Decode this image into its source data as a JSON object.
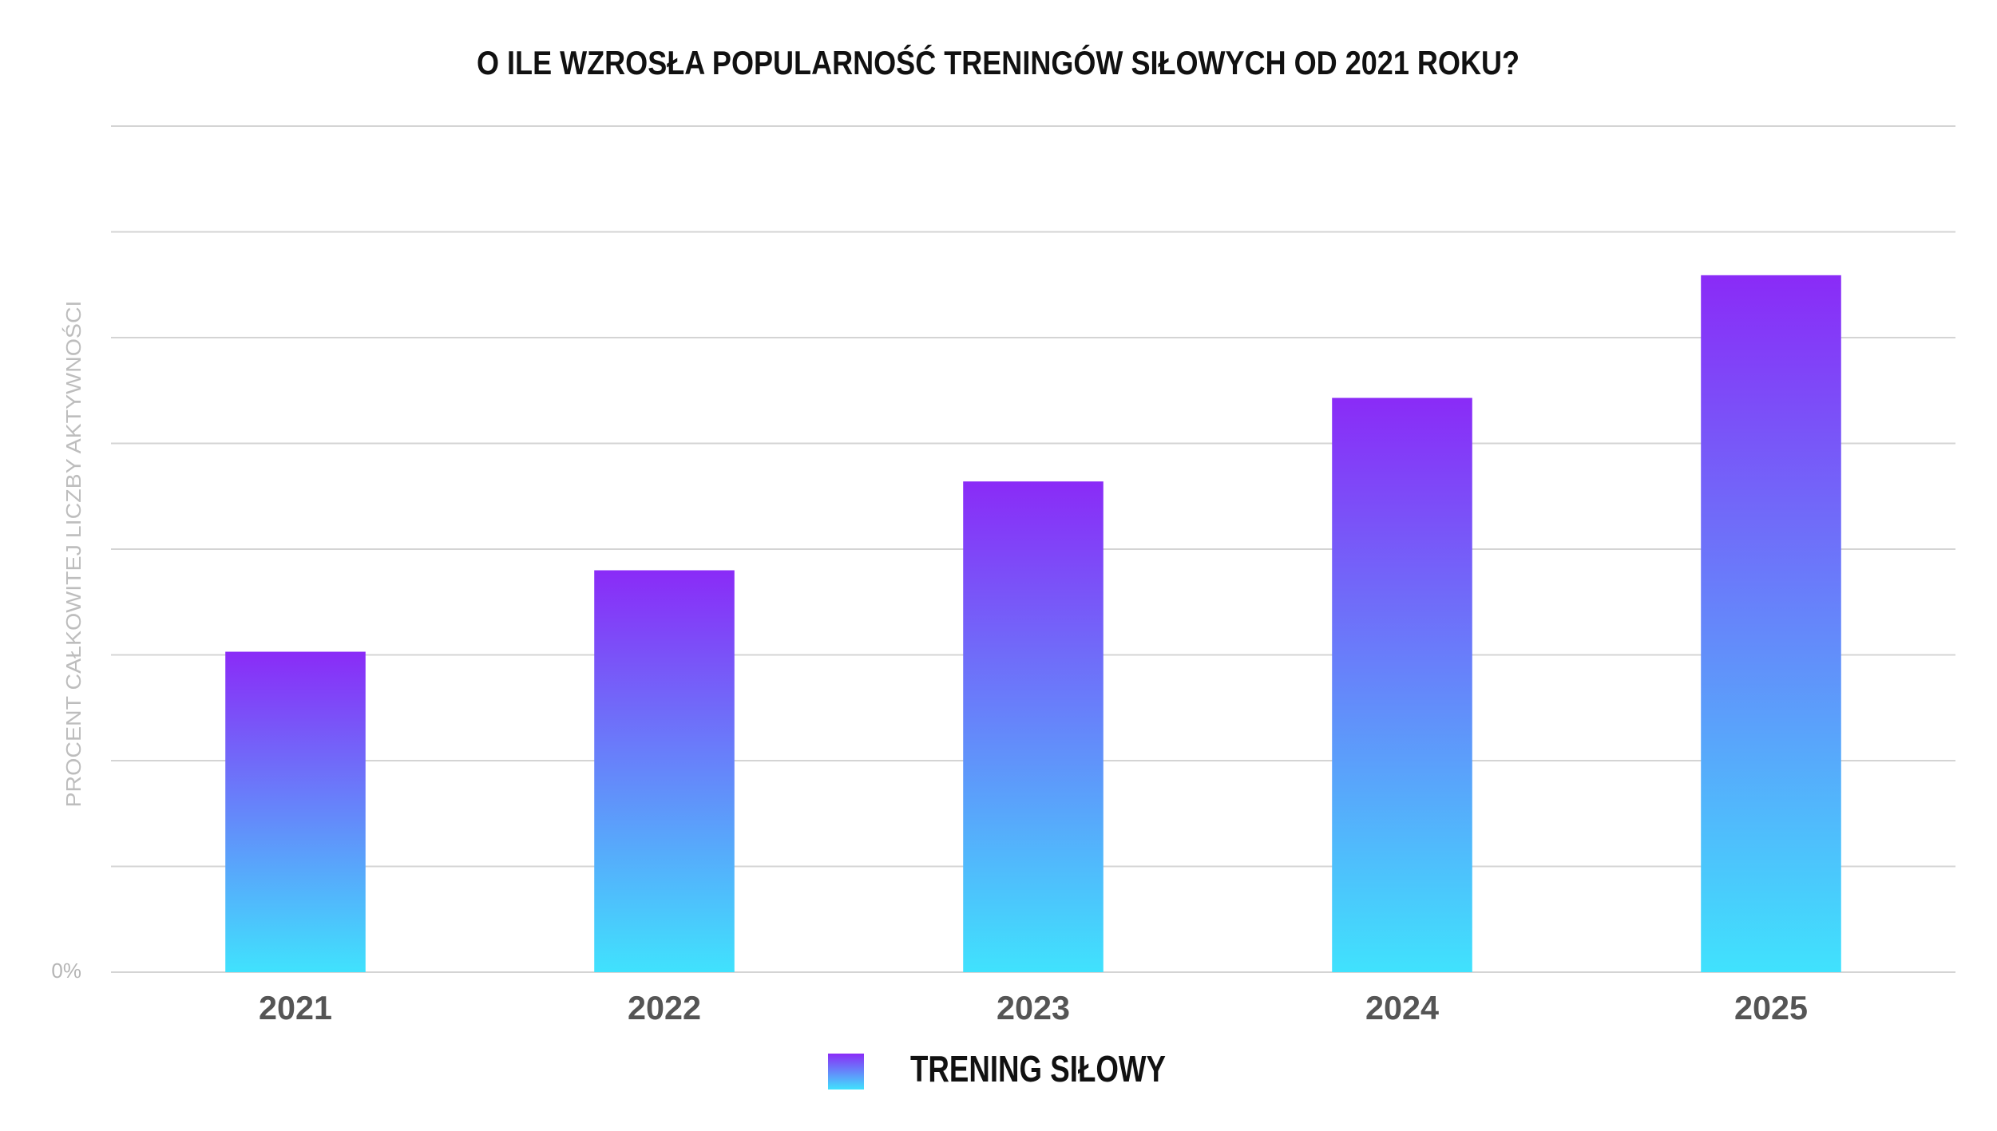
{
  "chart_data": {
    "type": "bar",
    "title": "O ILE WZROSŁA POPULARNOŚĆ TRENINGÓW SIŁOWYCH OD 2021 ROKU?",
    "y_label": "PROCENT CAŁKOWITEJ LICZBY AKTYWNOŚCI",
    "categories": [
      "2021",
      "2022",
      "2023",
      "2024",
      "2025"
    ],
    "series": [
      {
        "name": "TRENING SIŁOWY",
        "color": [
          "#8a2bf7",
          "#40e2fd"
        ],
        "values": [
          3.03,
          3.8,
          4.64,
          5.43,
          6.59
        ]
      }
    ],
    "ylim": [
      0,
      8
    ],
    "yticks": [
      {
        "value": 0,
        "label": "0%"
      },
      {
        "value": 1,
        "label": null
      },
      {
        "value": 2,
        "label": null
      },
      {
        "value": 3,
        "label": null
      },
      {
        "value": 4,
        "label": null
      },
      {
        "value": 5,
        "label": null
      },
      {
        "value": 6,
        "label": null
      },
      {
        "value": 7,
        "label": null
      },
      {
        "value": 8,
        "label": null
      }
    ],
    "grid": true
  }
}
